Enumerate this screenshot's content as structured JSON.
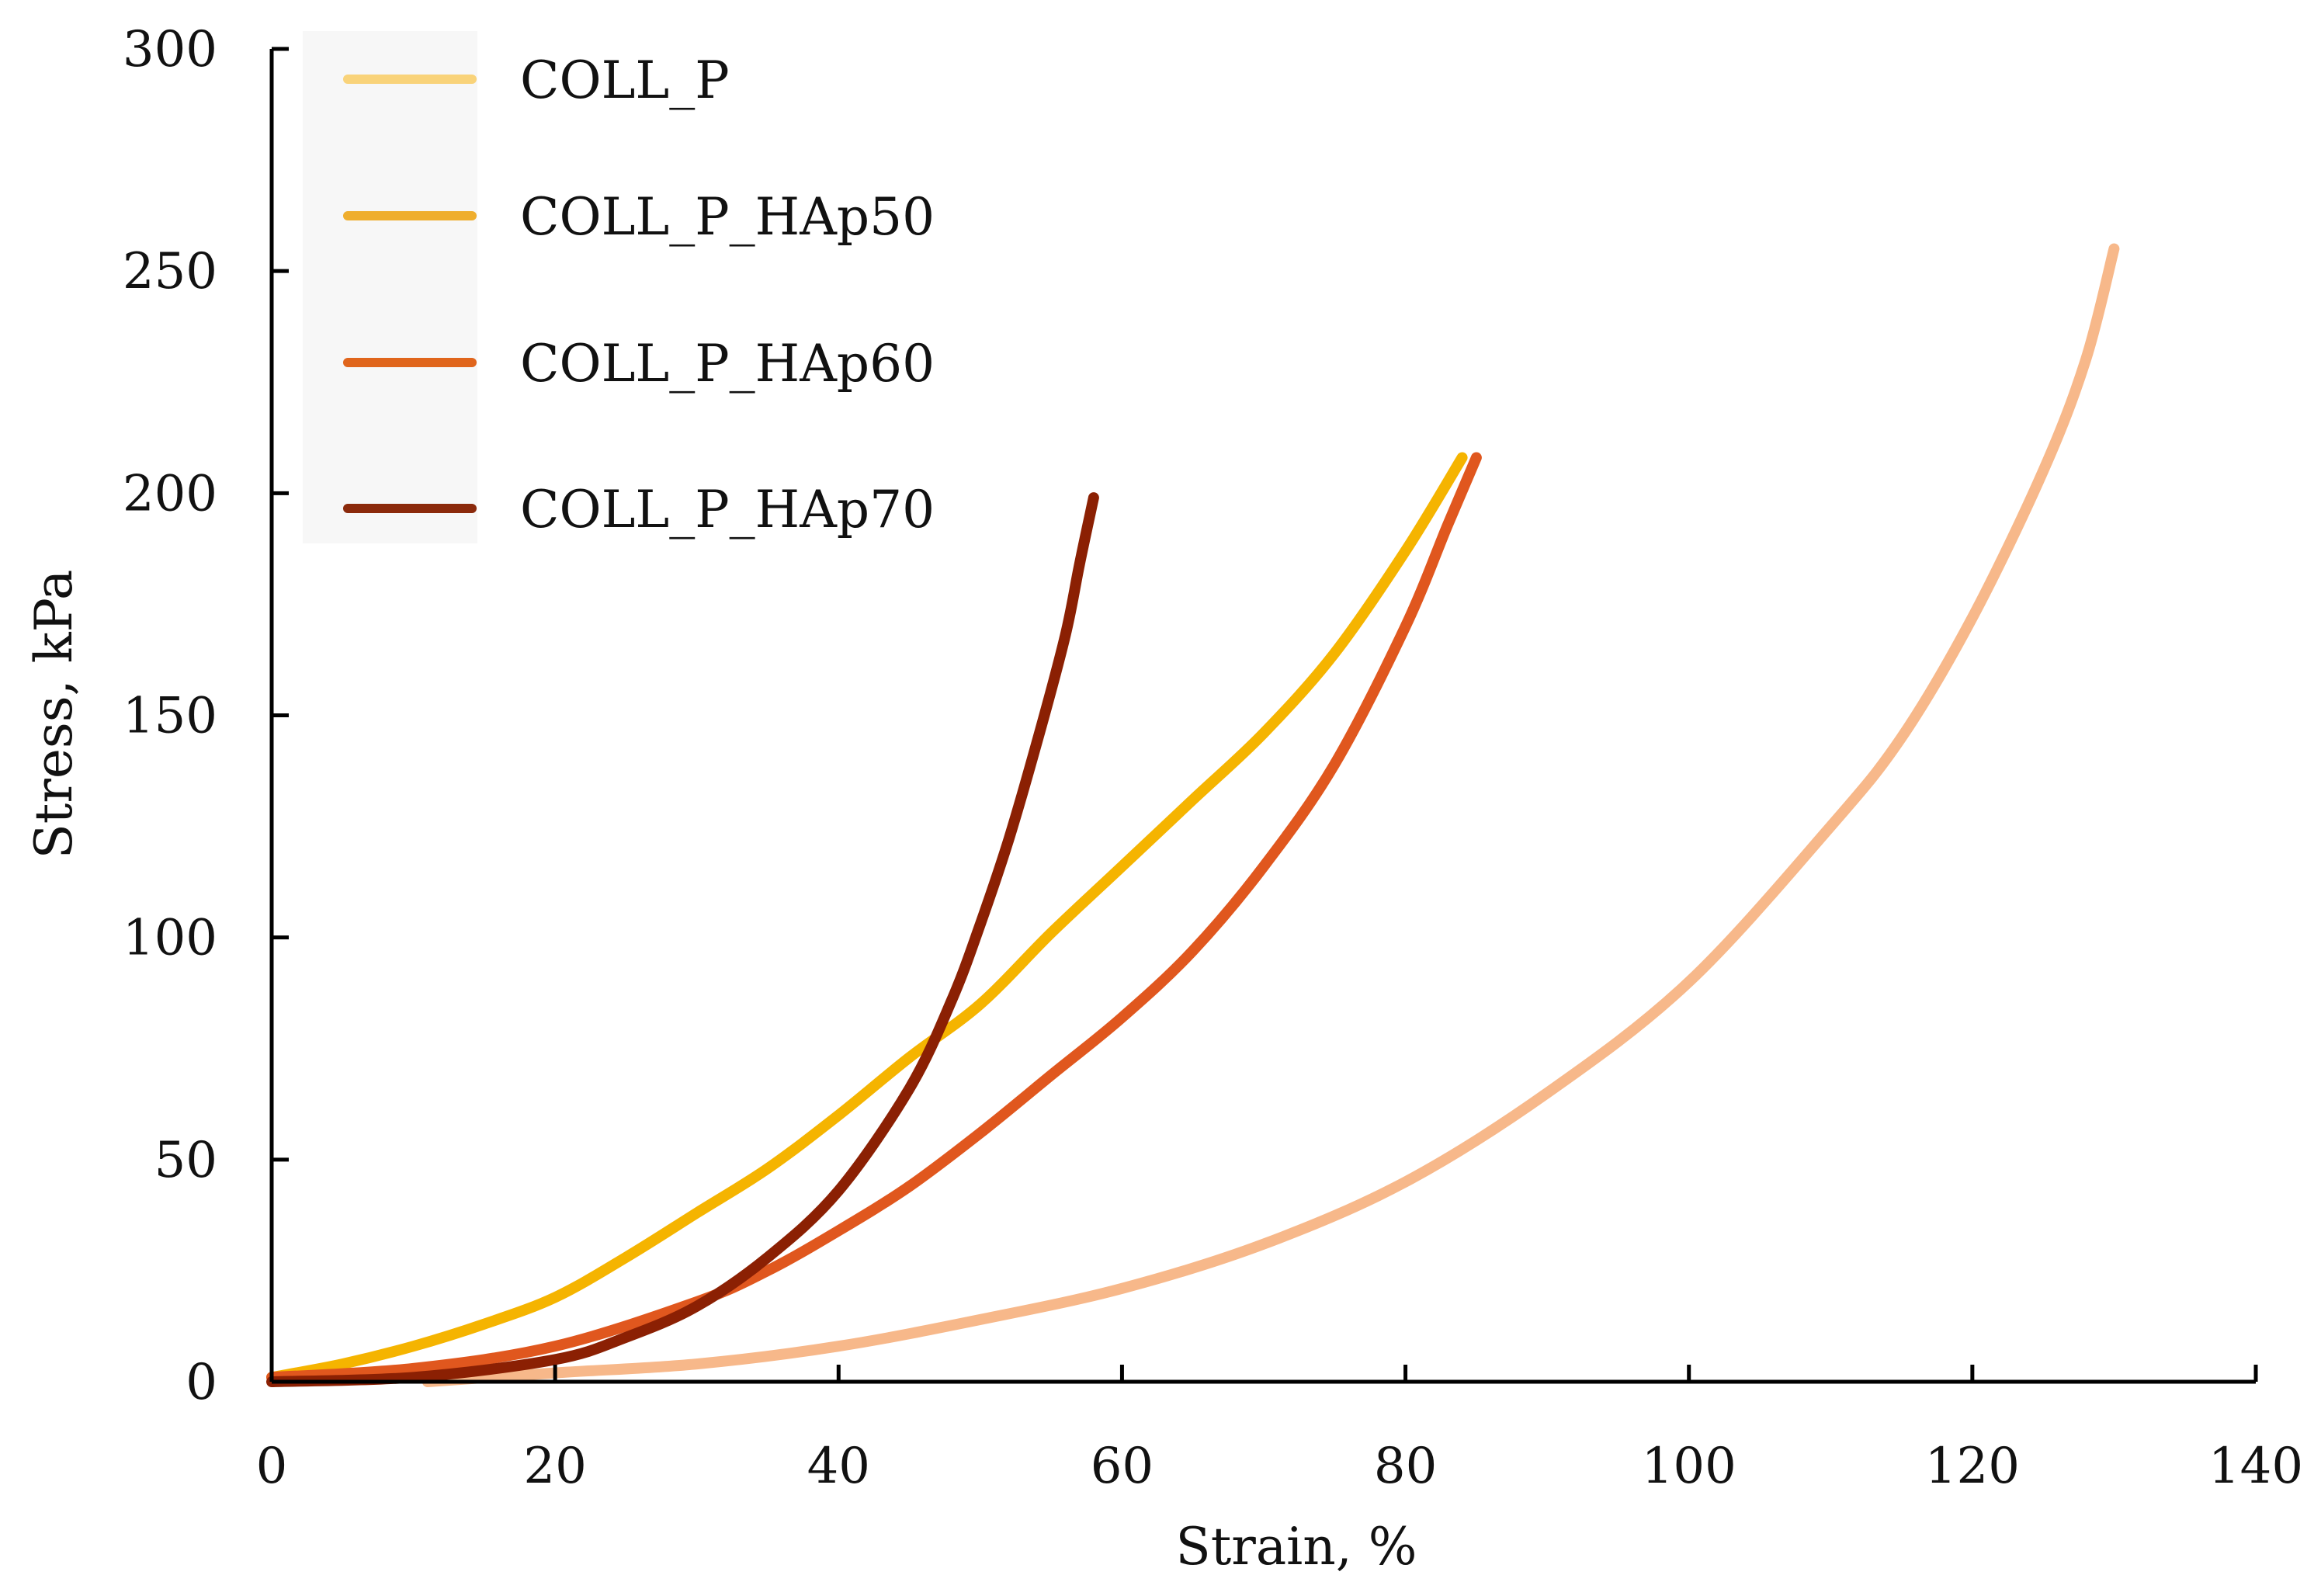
{
  "chart_data": {
    "type": "line",
    "title": "",
    "xlabel": "Strain, %",
    "ylabel": "Stress, kPa",
    "xlim": [
      0,
      140
    ],
    "ylim": [
      0,
      300
    ],
    "x_ticks": [
      0,
      20,
      40,
      60,
      80,
      100,
      120,
      140
    ],
    "y_ticks": [
      0,
      50,
      100,
      150,
      200,
      250,
      300
    ],
    "x_tick_labels": [
      "0",
      "20",
      "40",
      "60",
      "80",
      "100",
      "120",
      "140"
    ],
    "y_tick_labels": [
      "0",
      "50",
      "100",
      "150",
      "200",
      "250",
      "300"
    ],
    "grid": false,
    "legend_position": "top-left",
    "series": [
      {
        "name": "COLL_P",
        "color": "#f7b88a",
        "legend_color": "#f9d37a",
        "points": [
          [
            11,
            0
          ],
          [
            20,
            2
          ],
          [
            30,
            4
          ],
          [
            40,
            8
          ],
          [
            50,
            14
          ],
          [
            60,
            21
          ],
          [
            70,
            31
          ],
          [
            80,
            45
          ],
          [
            90,
            65
          ],
          [
            100,
            90
          ],
          [
            110,
            125
          ],
          [
            115,
            145
          ],
          [
            120,
            172
          ],
          [
            125,
            205
          ],
          [
            128,
            230
          ],
          [
            130,
            255
          ]
        ]
      },
      {
        "name": "COLL_P_HAp50",
        "color": "#f5b400",
        "legend_color": "#efae2e",
        "points": [
          [
            0,
            1
          ],
          [
            5,
            4
          ],
          [
            10,
            8
          ],
          [
            15,
            13
          ],
          [
            20,
            19
          ],
          [
            25,
            28
          ],
          [
            30,
            38
          ],
          [
            35,
            48
          ],
          [
            40,
            60
          ],
          [
            45,
            73
          ],
          [
            50,
            85
          ],
          [
            55,
            101
          ],
          [
            60,
            116
          ],
          [
            65,
            131
          ],
          [
            70,
            146
          ],
          [
            75,
            164
          ],
          [
            80,
            187
          ],
          [
            84,
            208
          ]
        ]
      },
      {
        "name": "COLL_P_HAp60",
        "color": "#e0571e",
        "legend_color": "#e0651c",
        "points": [
          [
            0,
            1
          ],
          [
            10,
            3
          ],
          [
            20,
            8
          ],
          [
            30,
            18
          ],
          [
            35,
            25
          ],
          [
            40,
            34
          ],
          [
            45,
            44
          ],
          [
            50,
            56
          ],
          [
            55,
            69
          ],
          [
            60,
            82
          ],
          [
            65,
            97
          ],
          [
            70,
            116
          ],
          [
            75,
            139
          ],
          [
            80,
            170
          ],
          [
            83,
            193
          ],
          [
            85,
            208
          ]
        ]
      },
      {
        "name": "COLL_P_HAp70",
        "color": "#8b2003",
        "legend_color": "#8b2a0c",
        "points": [
          [
            0,
            0
          ],
          [
            10,
            1
          ],
          [
            20,
            5
          ],
          [
            25,
            10
          ],
          [
            30,
            17
          ],
          [
            35,
            28
          ],
          [
            40,
            43
          ],
          [
            45,
            66
          ],
          [
            48,
            86
          ],
          [
            50,
            103
          ],
          [
            52,
            122
          ],
          [
            54,
            144
          ],
          [
            56,
            168
          ],
          [
            57,
            184
          ],
          [
            58,
            199
          ]
        ]
      }
    ]
  }
}
